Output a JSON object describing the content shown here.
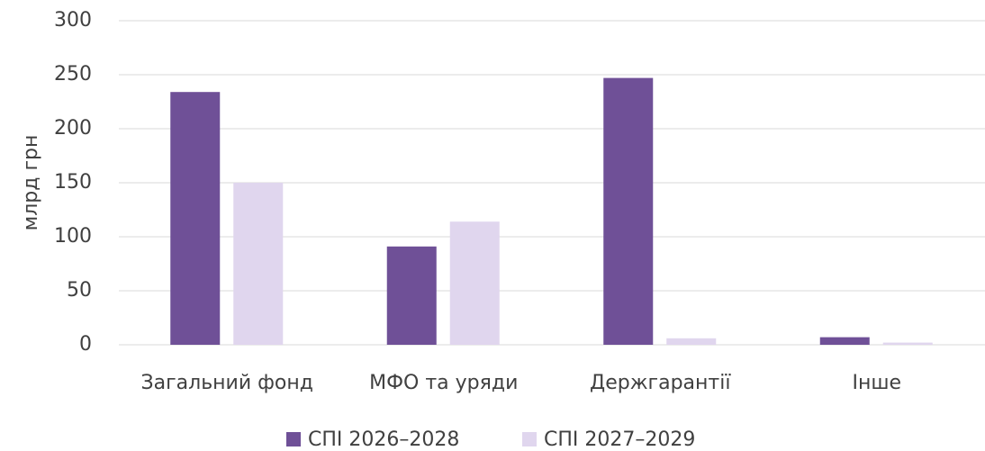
{
  "chart_data": {
    "type": "bar",
    "ylabel": "млрд грн",
    "categories": [
      "Загальний фонд",
      "МФО та уряди",
      "Держгарантії",
      "Інше"
    ],
    "series": [
      {
        "name": "СПІ 2026–2028",
        "color": "#6f5097",
        "values": [
          234,
          91,
          247,
          7
        ]
      },
      {
        "name": "СПІ 2027–2029",
        "color": "#e0d6ee",
        "values": [
          150,
          114,
          6,
          2
        ]
      }
    ],
    "ylim": [
      0,
      300
    ],
    "yticks": [
      0,
      50,
      100,
      150,
      200,
      250,
      300
    ],
    "grid": true,
    "legend": "bottom"
  }
}
